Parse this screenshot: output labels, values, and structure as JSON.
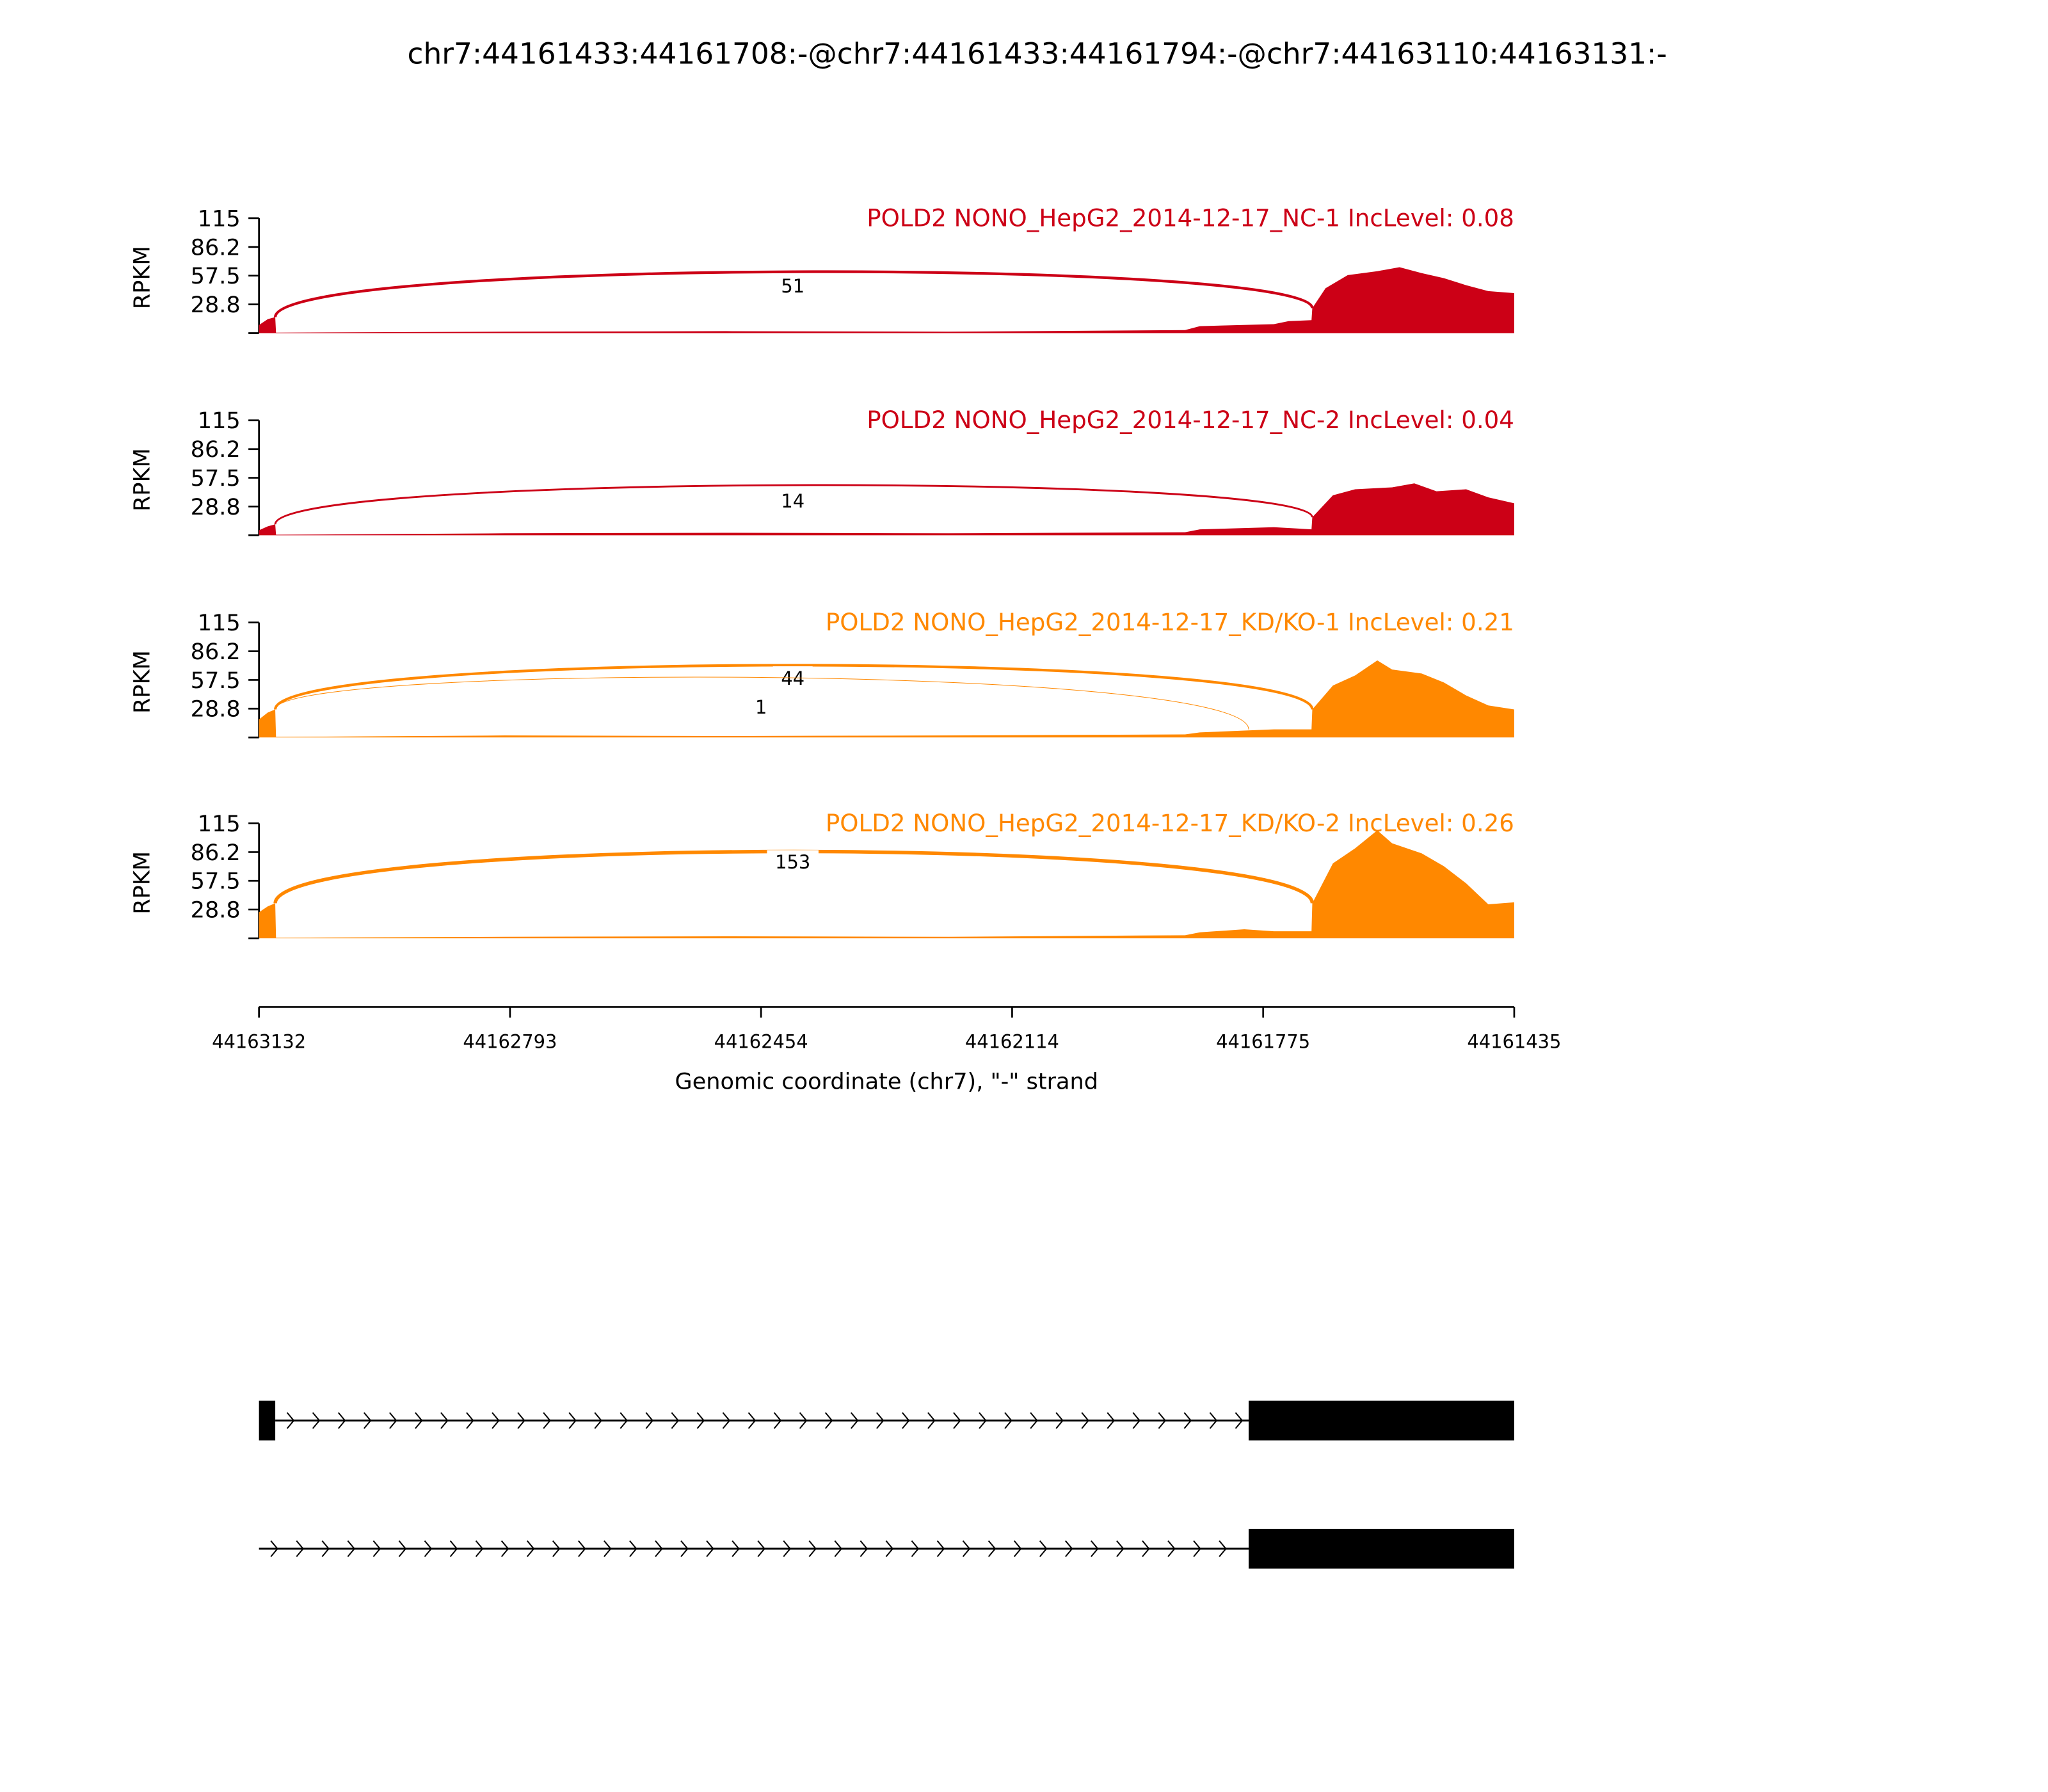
{
  "chart_data": {
    "type": "area",
    "title": "chr7:44161433:44161708:-@chr7:44161433:44161794:-@chr7:44163110:44163131:-",
    "xlabel": "Genomic coordinate (chr7), \"-\" strand",
    "ylabel": "RPKM",
    "xlim": [
      44163132,
      44161435
    ],
    "ylim": [
      0,
      115
    ],
    "xticks": [
      "44163132",
      "44162793",
      "44162454",
      "44162114",
      "44161775",
      "44161435"
    ],
    "yticks": [
      "115",
      "86.2",
      "57.5",
      "28.8"
    ],
    "colors": {
      "NC": "#cc0016",
      "KD": "#ff8800",
      "gene": "#000000"
    },
    "panels": [
      {
        "label": "POLD2 NONO_HepG2_2014-12-17_NC-1 IncLevel: 0.08",
        "group": "NC",
        "coverage": [
          [
            44163132,
            8
          ],
          [
            44163120,
            14
          ],
          [
            44163110,
            16
          ],
          [
            44163109,
            0.5
          ],
          [
            44162800,
            1.5
          ],
          [
            44162500,
            2
          ],
          [
            44162200,
            1.5
          ],
          [
            44161880,
            3
          ],
          [
            44161860,
            7
          ],
          [
            44161760,
            9
          ],
          [
            44161740,
            12
          ],
          [
            44161709,
            13
          ],
          [
            44161708,
            25
          ],
          [
            44161690,
            45
          ],
          [
            44161660,
            58
          ],
          [
            44161620,
            62
          ],
          [
            44161590,
            66
          ],
          [
            44161560,
            60
          ],
          [
            44161530,
            55
          ],
          [
            44161500,
            48
          ],
          [
            44161470,
            42
          ],
          [
            44161435,
            40
          ]
        ],
        "junctions": [
          {
            "from": 44163110,
            "to": 44161708,
            "count": "51",
            "peak": 42
          }
        ]
      },
      {
        "label": "POLD2 NONO_HepG2_2014-12-17_NC-2 IncLevel: 0.04",
        "group": "NC",
        "coverage": [
          [
            44163132,
            5
          ],
          [
            44163120,
            9
          ],
          [
            44163110,
            11
          ],
          [
            44163109,
            0.5
          ],
          [
            44162800,
            2
          ],
          [
            44162500,
            2.5
          ],
          [
            44162200,
            2
          ],
          [
            44161880,
            3
          ],
          [
            44161860,
            6
          ],
          [
            44161760,
            8
          ],
          [
            44161709,
            6
          ],
          [
            44161708,
            18
          ],
          [
            44161680,
            40
          ],
          [
            44161650,
            46
          ],
          [
            44161600,
            48
          ],
          [
            44161570,
            52
          ],
          [
            44161540,
            44
          ],
          [
            44161500,
            46
          ],
          [
            44161470,
            38
          ],
          [
            44161435,
            32
          ]
        ],
        "junctions": [
          {
            "from": 44163110,
            "to": 44161708,
            "count": "14",
            "peak": 29
          }
        ]
      },
      {
        "label": "POLD2 NONO_HepG2_2014-12-17_KD/KO-1 IncLevel: 0.21",
        "group": "KD",
        "coverage": [
          [
            44163132,
            18
          ],
          [
            44163120,
            25
          ],
          [
            44163110,
            28
          ],
          [
            44163109,
            0.5
          ],
          [
            44162800,
            2
          ],
          [
            44162500,
            1.5
          ],
          [
            44162200,
            2
          ],
          [
            44161880,
            3
          ],
          [
            44161860,
            5
          ],
          [
            44161760,
            8
          ],
          [
            44161709,
            8
          ],
          [
            44161708,
            28
          ],
          [
            44161680,
            52
          ],
          [
            44161650,
            62
          ],
          [
            44161620,
            77
          ],
          [
            44161600,
            68
          ],
          [
            44161560,
            64
          ],
          [
            44161530,
            55
          ],
          [
            44161500,
            42
          ],
          [
            44161470,
            32
          ],
          [
            44161435,
            28
          ]
        ],
        "junctions": [
          {
            "from": 44163110,
            "to": 44161708,
            "count": "44",
            "peak": 54
          },
          {
            "from": 44163110,
            "to": 44161794,
            "count": "1",
            "peak": 41
          }
        ]
      },
      {
        "label": "POLD2 NONO_HepG2_2014-12-17_KD/KO-2 IncLevel: 0.26",
        "group": "KD",
        "coverage": [
          [
            44163132,
            26
          ],
          [
            44163120,
            32
          ],
          [
            44163110,
            35
          ],
          [
            44163109,
            0.5
          ],
          [
            44162800,
            1.5
          ],
          [
            44162500,
            2
          ],
          [
            44162200,
            1.5
          ],
          [
            44161880,
            3
          ],
          [
            44161860,
            6
          ],
          [
            44161800,
            9
          ],
          [
            44161760,
            7
          ],
          [
            44161709,
            7
          ],
          [
            44161708,
            35
          ],
          [
            44161680,
            75
          ],
          [
            44161650,
            90
          ],
          [
            44161620,
            108
          ],
          [
            44161600,
            95
          ],
          [
            44161560,
            85
          ],
          [
            44161530,
            72
          ],
          [
            44161500,
            55
          ],
          [
            44161470,
            34
          ],
          [
            44161435,
            36
          ]
        ],
        "junctions": [
          {
            "from": 44163110,
            "to": 44161708,
            "count": "153",
            "peak": 71
          }
        ]
      }
    ],
    "gene_models": [
      {
        "exons": [
          [
            44163132,
            44163110
          ],
          [
            44161794,
            44161435
          ]
        ],
        "intron": [
          44163110,
          44161794
        ]
      },
      {
        "exons": [
          [
            44161794,
            44161435
          ]
        ],
        "intron": [
          44163132,
          44161794
        ]
      }
    ]
  }
}
